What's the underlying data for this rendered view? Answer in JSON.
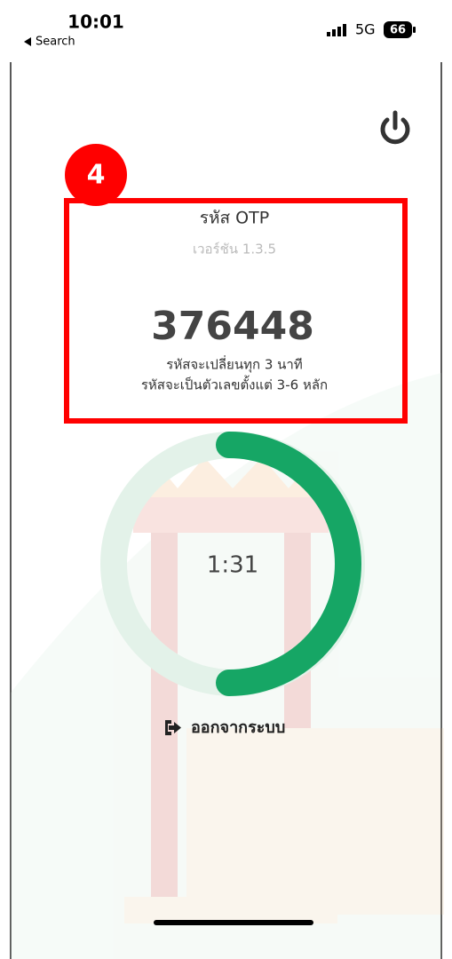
{
  "status_bar": {
    "time": "10:01",
    "back_label": "Search",
    "network": "5G",
    "battery": "66"
  },
  "annotation": {
    "step": "4"
  },
  "otp_card": {
    "title": "รหัส OTP",
    "version": "เวอร์ชัน 1.3.5",
    "code": "376448",
    "note_1": "รหัสจะเปลี่ยนทุก 3 นาที",
    "note_2": "รหัสจะเป็นตัวเลขตั้งแต่ 3-6 หลัก"
  },
  "timer": {
    "remaining": "1:31"
  },
  "logout": {
    "label": "ออกจากระบบ"
  }
}
